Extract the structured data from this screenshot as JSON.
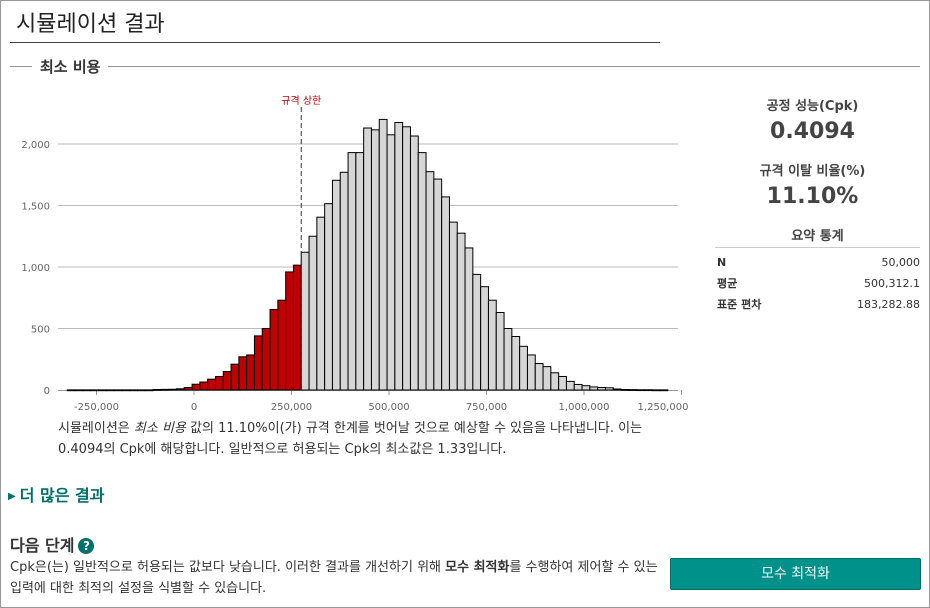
{
  "page": {
    "title": "시뮬레이션 결과",
    "section": "최소 비용"
  },
  "chart_data": {
    "type": "bar",
    "subtype": "histogram",
    "xlim": [
      -330000,
      1250000
    ],
    "ylim": [
      0,
      2250
    ],
    "xticks": [
      -250000,
      0,
      250000,
      500000,
      750000,
      1000000,
      1250000
    ],
    "xtick_labels": [
      "-250,000",
      "0",
      "250,000",
      "500,000",
      "750,000",
      "1,000,000",
      "1,250,000"
    ],
    "yticks": [
      0,
      500,
      1000,
      1500,
      2000
    ],
    "ytick_labels": [
      "0",
      "500",
      "1,000",
      "1,500",
      "2,000"
    ],
    "grid": "horizontal",
    "bins": {
      "start": -325000,
      "width": 20000,
      "counts": [
        1,
        1,
        1,
        1,
        1,
        1,
        1,
        1,
        1,
        1,
        1,
        4,
        5,
        6,
        10,
        20,
        47,
        65,
        88,
        110,
        150,
        210,
        270,
        285,
        440,
        500,
        655,
        730,
        960,
        1015,
        1120,
        1250,
        1405,
        1515,
        1705,
        1770,
        1930,
        1930,
        2130,
        2115,
        2200,
        2075,
        2175,
        2140,
        2065,
        1930,
        1775,
        1715,
        1570,
        1365,
        1275,
        1155,
        940,
        840,
        730,
        630,
        500,
        435,
        355,
        285,
        215,
        190,
        140,
        110,
        70,
        45,
        35,
        25,
        20,
        18,
        8,
        4,
        3,
        2,
        2,
        1,
        1
      ]
    },
    "spec_limit": {
      "label": "규격 상한",
      "value": 275000
    },
    "colors": {
      "out_of_spec": "#c00000",
      "in_spec": "#d6d6d6",
      "spec_line": "#333333",
      "grid": "#bbbbbb"
    }
  },
  "description": {
    "pre": "시뮬레이션은 ",
    "emph": "최소 비용",
    "post": " 값의 11.10%이(가) 규격 한계를 벗어날 것으로 예상할 수 있음을 나타냅니다. 이는 0.4094의 Cpk에 해당합니다. 일반적으로 허용되는 Cpk의 최소값은 1.33입니다."
  },
  "more_results": {
    "label": "더 많은 결과"
  },
  "next_steps": {
    "heading": "다음 단계",
    "help_icon": "?",
    "text_pre": "Cpk은(는) 일반적으로 허용되는 값보다 낮습니다. 이러한 결과를 개선하기 위해 ",
    "text_bold": "모수 최적화",
    "text_post": "를 수행하여 제어할 수 있는 입력에 대한 최적의 설정을 식별할 수 있습니다.",
    "button": "모수 최적화"
  },
  "summary": {
    "cpk_label": "공정 성능(Cpk)",
    "cpk_value": "0.4094",
    "oos_label": "규격 이탈 비율(%)",
    "oos_value": "11.10%",
    "stats_heading": "요약 통계",
    "stats": [
      {
        "label": "N",
        "value": "50,000"
      },
      {
        "label": "평균",
        "value": "500,312.1"
      },
      {
        "label": "표준 편차",
        "value": "183,282.88"
      }
    ]
  },
  "accent_color": "#00918a"
}
